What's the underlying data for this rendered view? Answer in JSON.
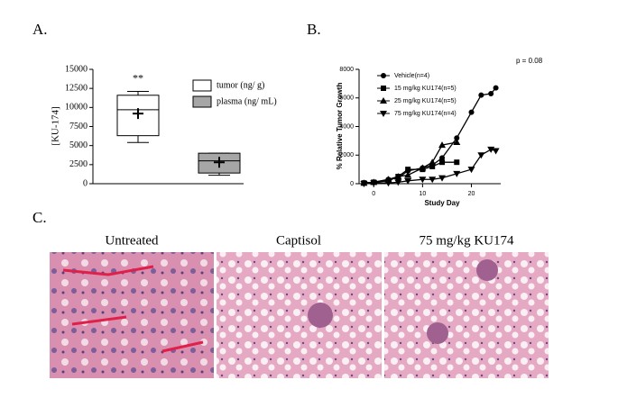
{
  "chart_data": [
    {
      "type": "box",
      "panel_label": "A.",
      "ylabel": "[KU-174]",
      "ylim": [
        0,
        15000
      ],
      "yticks": [
        0,
        2500,
        5000,
        7500,
        10000,
        12500,
        15000
      ],
      "series": [
        {
          "name": "tumor (ng/ g)",
          "color": "#ffffff",
          "min": 5400,
          "q1": 6300,
          "median": 9700,
          "q3": 11600,
          "max": 12100,
          "mean": 9200,
          "annotation": "**"
        },
        {
          "name": "plasma (ng/ mL)",
          "color": "#a6a6a6",
          "min": 1100,
          "q1": 1400,
          "median": 3000,
          "q3": 4000,
          "max": 4000,
          "mean": 2800
        }
      ]
    },
    {
      "type": "line",
      "panel_label": "B.",
      "ylabel": "% Relative Tumor Growth",
      "xlabel": "Study Day",
      "annotation": "p = 0.08",
      "xlim": [
        -3,
        26
      ],
      "xticks": [
        0,
        10,
        20
      ],
      "ylim": [
        0,
        8000
      ],
      "yticks": [
        0,
        2000,
        4000,
        6000,
        8000
      ],
      "series": [
        {
          "name": "Vehicle(n=4)",
          "color": "#000000",
          "marker": "circle",
          "x": [
            -2,
            0,
            3,
            5,
            7,
            10,
            12,
            14,
            17,
            20,
            22,
            24,
            25
          ],
          "values": [
            50,
            100,
            300,
            400,
            900,
            1100,
            1300,
            1800,
            3200,
            5000,
            6200,
            6300,
            6700
          ]
        },
        {
          "name": "15 mg/kg KU174(n=5)",
          "color": "#000000",
          "marker": "square",
          "x": [
            -2,
            0,
            3,
            5,
            7,
            10,
            12,
            14,
            17
          ],
          "values": [
            50,
            100,
            200,
            500,
            1000,
            1000,
            1200,
            1500,
            1500
          ]
        },
        {
          "name": "25 mg/kg KU174(n=5)",
          "color": "#000000",
          "marker": "triangle-up",
          "x": [
            -2,
            0,
            3,
            5,
            7,
            10,
            12,
            14,
            17
          ],
          "values": [
            50,
            100,
            300,
            500,
            600,
            1100,
            1500,
            2700,
            2900
          ]
        },
        {
          "name": "75 mg/kg KU174(n=4)",
          "color": "#000000",
          "marker": "triangle-down",
          "x": [
            -2,
            0,
            3,
            5,
            7,
            10,
            12,
            14,
            17,
            20,
            22,
            24,
            25
          ],
          "values": [
            0,
            50,
            50,
            100,
            200,
            300,
            300,
            400,
            700,
            1000,
            2000,
            2400,
            2300
          ]
        }
      ]
    }
  ],
  "panel_c": {
    "panel_label": "C.",
    "captions": [
      "Untreated",
      "Captisol",
      "75 mg/kg KU174"
    ]
  }
}
